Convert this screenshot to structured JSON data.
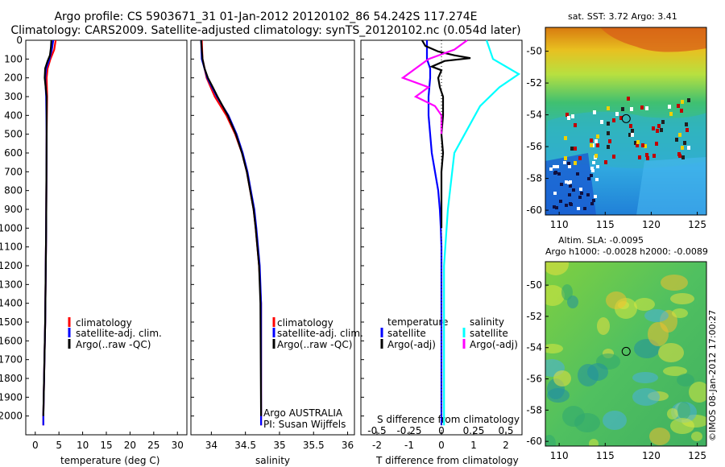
{
  "header": {
    "title_line1": "Argo profile: CS 5903671_31 01-Jan-2012 20120102_86 54.242S 117.274E",
    "title_line2": "Climatology: CARS2009. Satellite-adjusted climatology: synTS_20120102.nc (0.054d later)"
  },
  "colors": {
    "climatology": "#ff0000",
    "satellite": "#0000ff",
    "argo": "#000000",
    "sal_satellite": "#00ffff",
    "sal_argo": "#ff00ff"
  },
  "chart_data": [
    {
      "type": "line",
      "name": "temperature",
      "xlabel": "temperature (deg C)",
      "xlim": [
        -2,
        32
      ],
      "ylim": [
        0,
        2100
      ],
      "xticks": [
        0,
        5,
        10,
        15,
        20,
        25,
        30
      ],
      "yticks": [
        0,
        100,
        200,
        300,
        400,
        500,
        600,
        700,
        800,
        900,
        1000,
        1100,
        1200,
        1300,
        1400,
        1500,
        1600,
        1700,
        1800,
        1900,
        2000
      ],
      "legend": [
        "climatology",
        "satellite-adj. clim.",
        "Argo(..raw -QC)"
      ],
      "series": [
        {
          "name": "climatology",
          "color": "#ff0000",
          "depth": [
            0,
            50,
            100,
            150,
            200,
            300,
            500,
            1000,
            1500,
            2000,
            2050
          ],
          "values": [
            4.3,
            4.0,
            3.2,
            2.6,
            2.4,
            2.5,
            2.4,
            2.3,
            2.1,
            1.7,
            1.7
          ]
        },
        {
          "name": "satellite-adj. clim.",
          "color": "#0000ff",
          "depth": [
            0,
            50,
            100,
            150,
            200,
            300,
            500,
            1000,
            1500,
            2000,
            2050
          ],
          "values": [
            3.8,
            3.5,
            3.0,
            2.3,
            2.1,
            2.3,
            2.4,
            2.3,
            2.1,
            1.7,
            1.7
          ]
        },
        {
          "name": "Argo",
          "color": "#000000",
          "depth": [
            0,
            40,
            80,
            110,
            150,
            200,
            300,
            500,
            1000,
            1500,
            2000
          ],
          "values": [
            3.4,
            3.3,
            3.1,
            2.6,
            2.1,
            2.0,
            2.4,
            2.4,
            2.3,
            2.1,
            1.7
          ]
        }
      ]
    },
    {
      "type": "line",
      "name": "salinity",
      "xlabel": "salinity",
      "xlim": [
        33.7,
        36.1
      ],
      "ylim": [
        0,
        2100
      ],
      "xticks": [
        34,
        34.5,
        35,
        35.5,
        36
      ],
      "legend": [
        "climatology",
        "satellite-adj. clim.",
        "Argo(..raw -QC)"
      ],
      "annotation": [
        "Argo AUSTRALIA",
        "PI: Susan Wijffels"
      ],
      "series": [
        {
          "name": "climatology",
          "color": "#ff0000",
          "depth": [
            0,
            100,
            200,
            300,
            400,
            500,
            600,
            700,
            800,
            900,
            1000,
            1200,
            1400,
            2050
          ],
          "values": [
            33.86,
            33.87,
            33.93,
            34.05,
            34.22,
            34.35,
            34.45,
            34.52,
            34.57,
            34.62,
            34.65,
            34.7,
            34.73,
            34.73
          ]
        },
        {
          "name": "satellite-adj. clim.",
          "color": "#0000ff",
          "depth": [
            0,
            100,
            200,
            300,
            400,
            500,
            600,
            700,
            800,
            900,
            1000,
            1200,
            1400,
            2050
          ],
          "values": [
            33.85,
            33.86,
            33.94,
            34.08,
            34.25,
            34.37,
            34.46,
            34.53,
            34.58,
            34.63,
            34.66,
            34.71,
            34.73,
            34.73
          ]
        },
        {
          "name": "Argo",
          "color": "#000000",
          "depth": [
            0,
            50,
            100,
            150,
            200,
            250,
            300,
            400,
            500,
            600,
            700,
            800,
            900,
            1000,
            1200,
            1400,
            2000
          ],
          "values": [
            33.85,
            33.86,
            33.87,
            33.9,
            33.95,
            34.02,
            34.09,
            34.24,
            34.36,
            34.45,
            34.52,
            34.57,
            34.62,
            34.65,
            34.7,
            34.72,
            34.73
          ]
        }
      ]
    },
    {
      "type": "line",
      "name": "differences",
      "xlabel": "T difference from climatology",
      "top_label": "S difference from climatology",
      "xlim": [
        -2.5,
        2.5
      ],
      "ylim": [
        0,
        2100
      ],
      "xticks": [
        -2,
        -1,
        0,
        1,
        2
      ],
      "top_ticks": [
        "-0.5",
        "-0.25",
        "0",
        "0.25",
        "0.5"
      ],
      "legend_headers": [
        "temperature",
        "salinity"
      ],
      "legend": [
        "satellite",
        "Argo(-adj)",
        "satellite",
        "Argo(-adj)"
      ],
      "series": [
        {
          "name": "T satellite",
          "color": "#0000ff",
          "depth": [
            0,
            100,
            150,
            200,
            300,
            400,
            500,
            600,
            700,
            800,
            900,
            1000,
            1100,
            2050
          ],
          "values": [
            -0.45,
            -0.45,
            -0.35,
            -0.35,
            -0.4,
            -0.4,
            -0.35,
            -0.3,
            -0.2,
            -0.1,
            -0.05,
            -0.02,
            0,
            0
          ]
        },
        {
          "name": "T Argo(-adj)",
          "color": "#000000",
          "depth": [
            0,
            30,
            60,
            80,
            95,
            110,
            140,
            160,
            200,
            250,
            300,
            400,
            500,
            600,
            700,
            800,
            900,
            1000
          ],
          "values": [
            -0.6,
            -0.5,
            -0.1,
            0.4,
            0.9,
            0.1,
            -0.3,
            0.0,
            -0.1,
            -0.05,
            0.05,
            0.05,
            0.0,
            0.05,
            0.0,
            0.0,
            0.0,
            0.0
          ]
        },
        {
          "name": "S satellite",
          "color": "#00ffff",
          "depth": [
            0,
            100,
            180,
            250,
            350,
            600,
            900,
            1200,
            2050
          ],
          "values": [
            0.35,
            0.4,
            0.6,
            0.45,
            0.3,
            0.1,
            0.05,
            0.02,
            0.02
          ]
        },
        {
          "name": "S Argo(-adj)",
          "color": "#ff00ff",
          "depth": [
            0,
            50,
            100,
            150,
            200,
            250,
            300,
            350,
            400,
            500
          ],
          "values": [
            0.2,
            0.1,
            -0.1,
            -0.2,
            -0.3,
            -0.1,
            -0.2,
            -0.05,
            0.0,
            0.0
          ]
        }
      ]
    },
    {
      "type": "heatmap",
      "name": "sst-map",
      "title": "sat. SST: 3.72  Argo: 3.41",
      "xlim": [
        108.5,
        126
      ],
      "ylim": [
        -60.3,
        -48.5
      ],
      "xticks": [
        "110",
        "115",
        "120",
        "125"
      ],
      "yticks": [
        "-50",
        "-52",
        "-54",
        "-56",
        "-58",
        "-60"
      ],
      "marker": {
        "lon": 117.274,
        "lat": -54.242
      }
    },
    {
      "type": "heatmap",
      "name": "sla-map",
      "title_line1": "Altim. SLA: -0.0095",
      "title_line2": "Argo h1000: -0.0028 h2000: -0.0089",
      "xlim": [
        108.5,
        126
      ],
      "ylim": [
        -60.3,
        -48.5
      ],
      "xticks": [
        "110",
        "115",
        "120",
        "125"
      ],
      "yticks": [
        "-50",
        "-52",
        "-54",
        "-56",
        "-58",
        "-60"
      ],
      "marker": {
        "lon": 117.274,
        "lat": -54.242
      }
    }
  ],
  "footer": {
    "credit": "©IMOS 08-Jan-2012 17:00:27"
  }
}
